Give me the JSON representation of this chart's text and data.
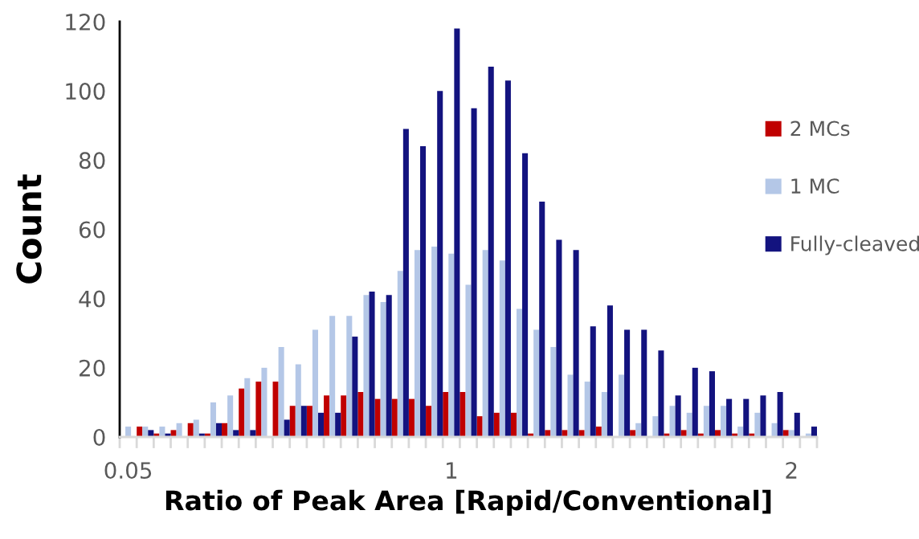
{
  "chart_data": {
    "type": "bar",
    "xlabel": "Ratio of Peak Area [Rapid/Conventional]",
    "ylabel": "Count",
    "categories": [
      "0.05",
      null,
      null,
      null,
      null,
      null,
      null,
      null,
      null,
      null,
      null,
      null,
      null,
      null,
      null,
      null,
      null,
      null,
      null,
      "1",
      null,
      null,
      null,
      null,
      null,
      null,
      null,
      null,
      null,
      null,
      null,
      null,
      null,
      null,
      null,
      null,
      null,
      null,
      null,
      "2",
      null
    ],
    "series": [
      {
        "name": "2 MCs",
        "color": "#c00000",
        "values": [
          0,
          3,
          1,
          2,
          4,
          1,
          4,
          14,
          16,
          16,
          9,
          9,
          12,
          12,
          13,
          11,
          11,
          11,
          9,
          13,
          13,
          6,
          7,
          7,
          1,
          2,
          2,
          2,
          3,
          0,
          2,
          0,
          1,
          2,
          1,
          2,
          1,
          1,
          0,
          2,
          0
        ]
      },
      {
        "name": "1 MC",
        "color": "#b4c7e7",
        "values": [
          3,
          3,
          3,
          4,
          5,
          10,
          12,
          17,
          20,
          26,
          21,
          31,
          35,
          35,
          41,
          39,
          48,
          54,
          55,
          53,
          44,
          54,
          51,
          37,
          31,
          26,
          18,
          16,
          13,
          18,
          4,
          6,
          9,
          7,
          9,
          9,
          3,
          7,
          4,
          2,
          1
        ]
      },
      {
        "name": "Fully-cleaved",
        "color": "#13137f",
        "values": [
          0,
          2,
          1,
          0,
          1,
          4,
          2,
          2,
          0,
          5,
          9,
          7,
          7,
          29,
          42,
          41,
          89,
          84,
          100,
          118,
          95,
          107,
          103,
          82,
          68,
          57,
          54,
          32,
          38,
          31,
          31,
          25,
          12,
          20,
          19,
          11,
          11,
          12,
          13,
          7,
          3
        ]
      }
    ],
    "ylim": [
      0,
      120
    ],
    "yticks": [
      0,
      20,
      40,
      60,
      80,
      100,
      120
    ],
    "grid": false,
    "legend": "right"
  }
}
